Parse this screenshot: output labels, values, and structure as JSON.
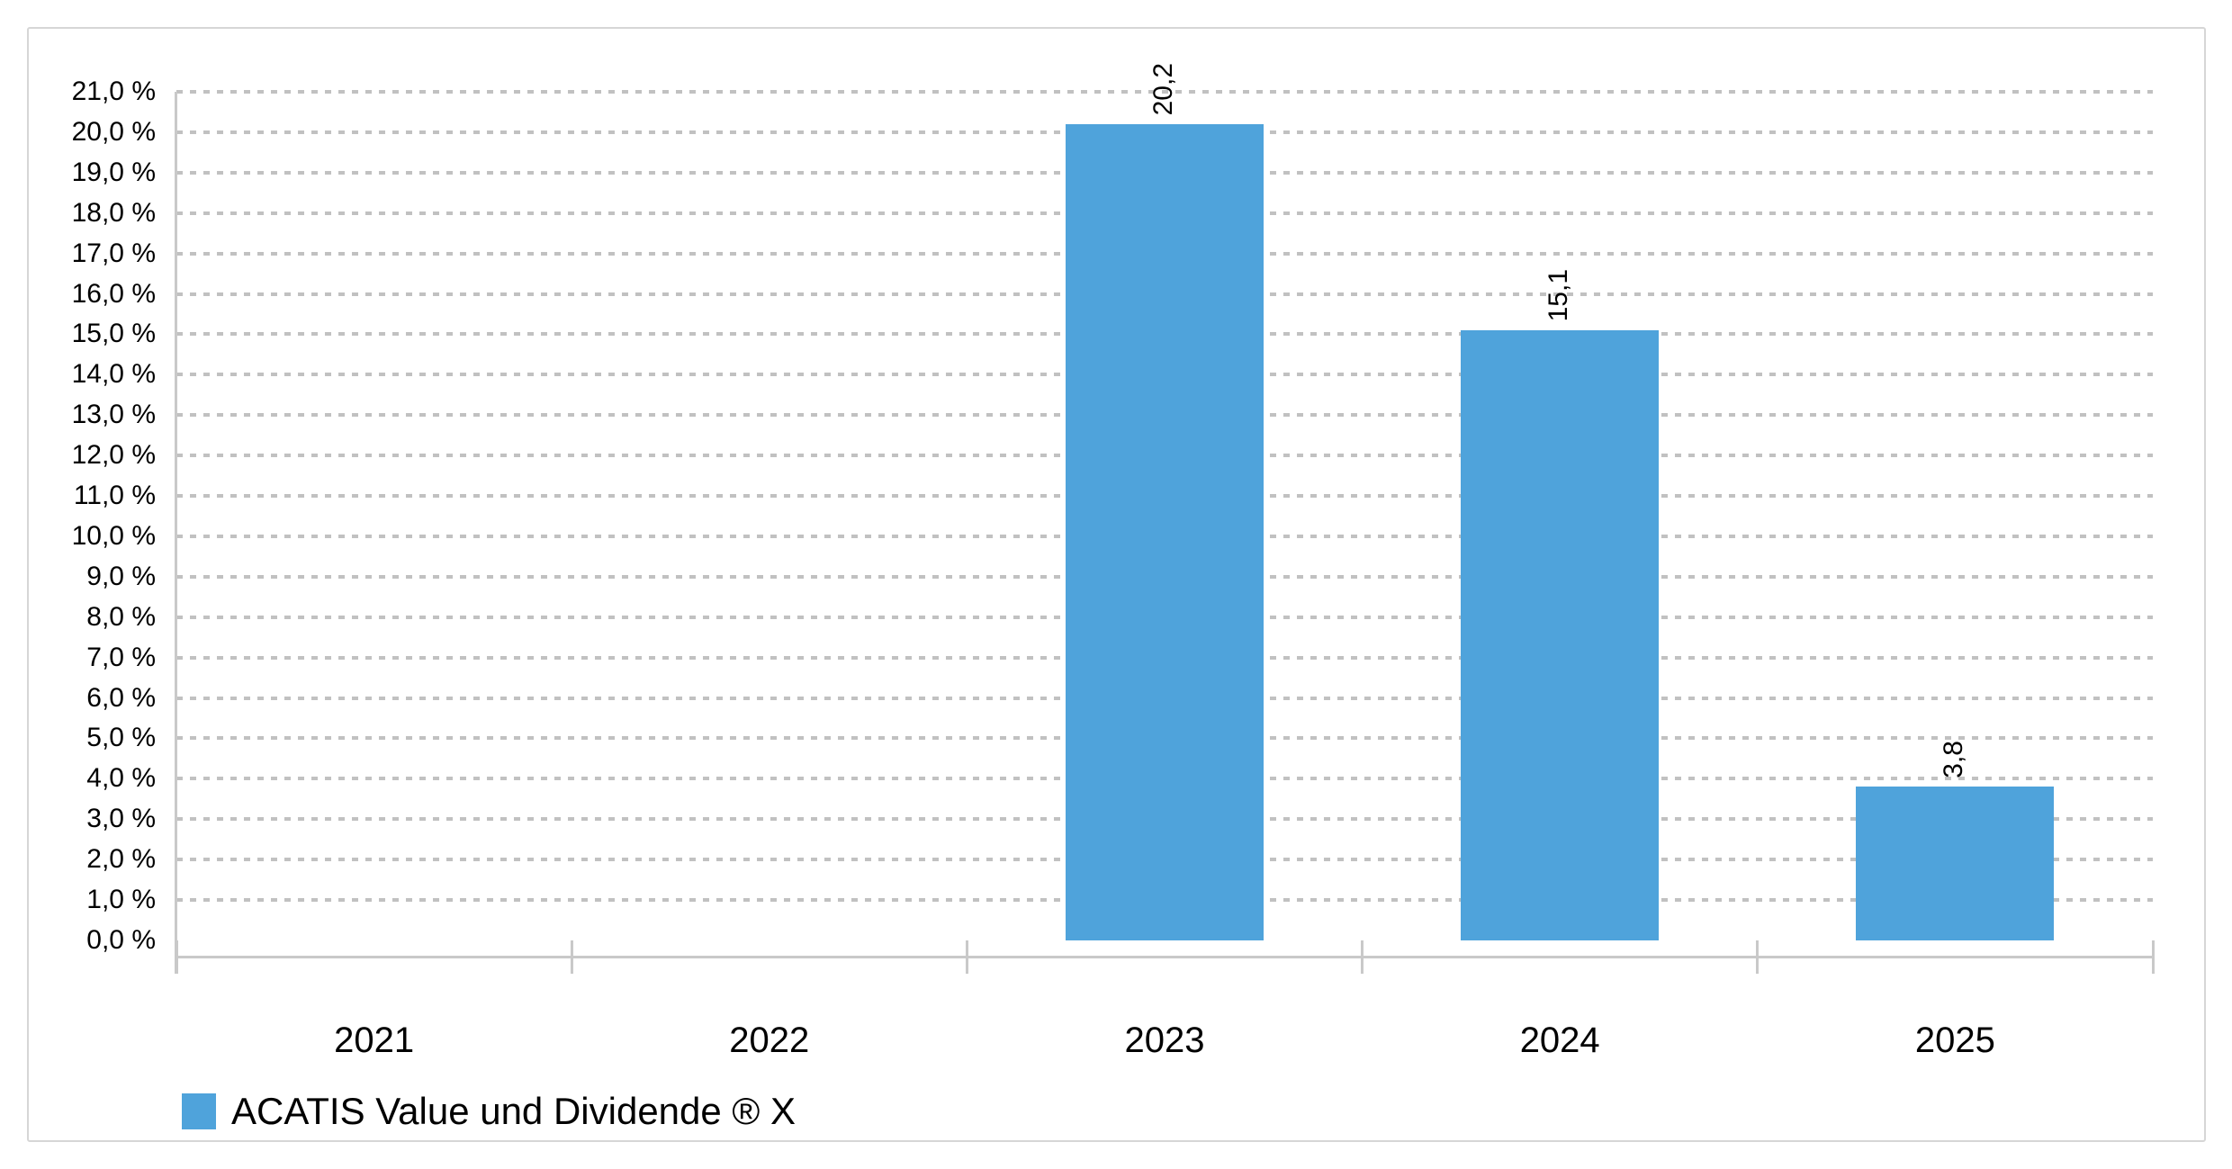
{
  "chart_data": {
    "type": "bar",
    "categories": [
      "2021",
      "2022",
      "2023",
      "2024",
      "2025"
    ],
    "series": [
      {
        "name": "ACATIS Value und Dividende ® X",
        "values": [
          null,
          null,
          20.2,
          15.1,
          3.8
        ]
      }
    ],
    "bar_value_labels": [
      null,
      null,
      "20,2",
      "15,1",
      "3,8"
    ],
    "xlabel": "",
    "ylabel": "",
    "ylim": [
      0,
      21
    ],
    "y_tick_step": 1.0,
    "y_tick_labels": [
      "0,0 %",
      "1,0 %",
      "2,0 %",
      "3,0 %",
      "4,0 %",
      "5,0 %",
      "6,0 %",
      "7,0 %",
      "8,0 %",
      "9,0 %",
      "10,0 %",
      "11,0 %",
      "12,0 %",
      "13,0 %",
      "14,0 %",
      "15,0 %",
      "16,0 %",
      "17,0 %",
      "18,0 %",
      "19,0 %",
      "20,0 %",
      "21,0 %"
    ],
    "grid": "horizontal-dashed",
    "grid_on": true,
    "legend_position": "bottom-left",
    "colors": {
      "bar": "#4FA3DB",
      "grid": "#c1c1c1",
      "axis": "#c9c9c9",
      "text": "#000000",
      "border": "#d6d6d6"
    }
  }
}
